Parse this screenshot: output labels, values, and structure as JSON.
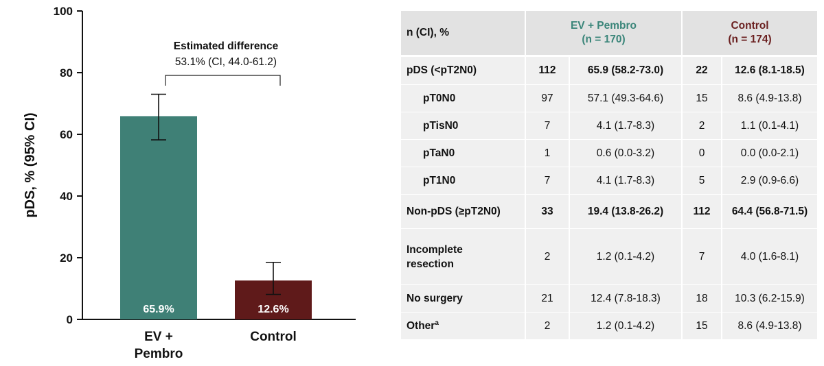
{
  "chart_data": {
    "type": "bar",
    "categories": [
      "EV + Pembro",
      "Control"
    ],
    "values": [
      65.9,
      12.6
    ],
    "ci_low": [
      58.2,
      8.1
    ],
    "ci_high": [
      73.0,
      18.5
    ],
    "value_labels": [
      "65.9%",
      "12.6%"
    ],
    "category_labels": [
      [
        "EV +",
        "Pembro"
      ],
      [
        "Control"
      ]
    ],
    "colors": [
      "#3f8076",
      "#5f1a1a"
    ],
    "ylabel": "pDS, % (95% CI)",
    "ylim": [
      0,
      100
    ],
    "yticks": [
      0,
      20,
      40,
      60,
      80,
      100
    ],
    "annotation_title": "Estimated difference",
    "annotation_text": "53.1% (CI, 44.0-61.2)",
    "grid": false
  },
  "table": {
    "header": {
      "label": "n (CI), %",
      "ev_line1": "EV + Pembro",
      "ev_line2": "(n = 170)",
      "ctrl_line1": "Control",
      "ctrl_line2": "(n = 174)",
      "ev_color": "#3a8579",
      "ctrl_color": "#6a1f1f"
    },
    "rows": [
      {
        "label": "pDS (<pT2N0)",
        "ev_n": "112",
        "ev_pct": "65.9 (58.2-73.0)",
        "ctrl_n": "22",
        "ctrl_pct": "12.6 (8.1-18.5)"
      },
      {
        "label": "pT0N0",
        "ev_n": "97",
        "ev_pct": "57.1 (49.3-64.6)",
        "ctrl_n": "15",
        "ctrl_pct": "8.6 (4.9-13.8)"
      },
      {
        "label": "pTisN0",
        "ev_n": "7",
        "ev_pct": "4.1 (1.7-8.3)",
        "ctrl_n": "2",
        "ctrl_pct": "1.1 (0.1-4.1)"
      },
      {
        "label": "pTaN0",
        "ev_n": "1",
        "ev_pct": "0.6 (0.0-3.2)",
        "ctrl_n": "0",
        "ctrl_pct": "0.0 (0.0-2.1)"
      },
      {
        "label": "pT1N0",
        "ev_n": "7",
        "ev_pct": "4.1 (1.7-8.3)",
        "ctrl_n": "5",
        "ctrl_pct": "2.9 (0.9-6.6)"
      },
      {
        "label": "Non-pDS (≥pT2N0)",
        "ev_n": "33",
        "ev_pct": "19.4 (13.8-26.2)",
        "ctrl_n": "112",
        "ctrl_pct": "64.4 (56.8-71.5)"
      },
      {
        "label_line1": "Incomplete",
        "label_line2": "resection",
        "ev_n": "2",
        "ev_pct": "1.2 (0.1-4.2)",
        "ctrl_n": "7",
        "ctrl_pct": "4.0 (1.6-8.1)"
      },
      {
        "label": "No surgery",
        "ev_n": "21",
        "ev_pct": "12.4 (7.8-18.3)",
        "ctrl_n": "18",
        "ctrl_pct": "10.3 (6.2-15.9)"
      },
      {
        "label": "Other",
        "label_sup": "a",
        "ev_n": "2",
        "ev_pct": "1.2 (0.1-4.2)",
        "ctrl_n": "15",
        "ctrl_pct": "8.6 (4.9-13.8)"
      }
    ]
  }
}
